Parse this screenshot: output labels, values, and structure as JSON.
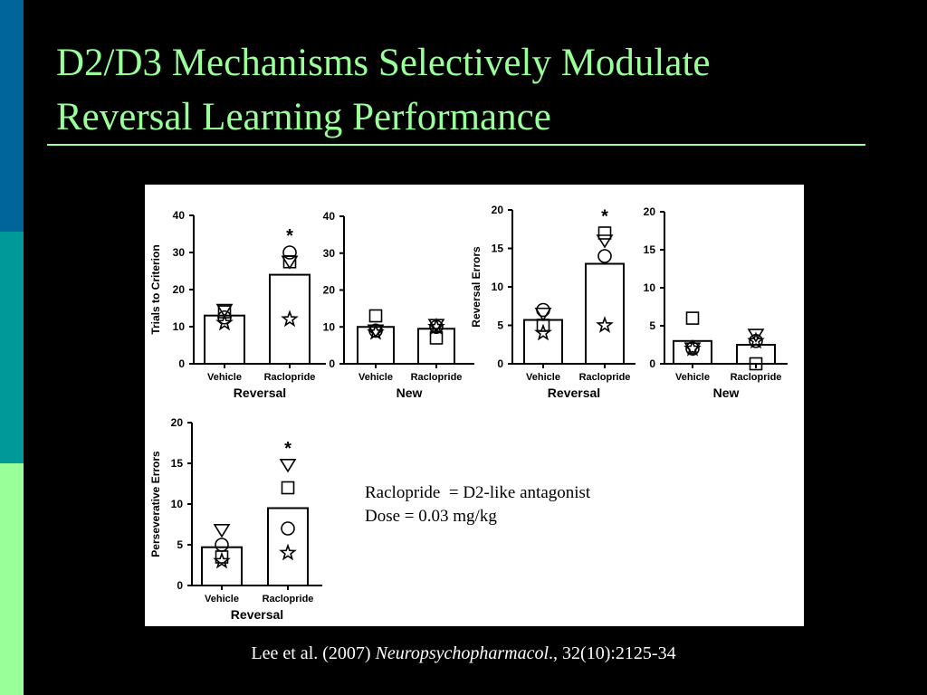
{
  "slide": {
    "title_lines": [
      "D2/D3 Mechanisms Selectively Modulate",
      "Reversal Learning Performance"
    ],
    "sidebar_colors": [
      "#006699",
      "#009999",
      "#99ff99"
    ],
    "title_color": "#99ff99",
    "annotation_lines": [
      "Raclopride  = D2-like antagonist",
      "Dose = 0.03 mg/kg"
    ],
    "citation": {
      "prefix": "Lee et al. (2007) ",
      "journal": "Neuropsychopharmacol",
      "suffix": "., 32(10):2125-34"
    }
  },
  "chart_data": [
    {
      "type": "bar",
      "ylabel": "Trials to Criterion",
      "xlabel": "Reversal",
      "ylim": [
        0,
        40
      ],
      "yticks": [
        0,
        10,
        20,
        30,
        40
      ],
      "categories": [
        "Vehicle",
        "Raclopride"
      ],
      "values": [
        13,
        24
      ],
      "significance": [
        null,
        "*"
      ],
      "points": [
        [
          {
            "shape": "triangle",
            "y": 14.5
          },
          {
            "shape": "square",
            "y": 14
          },
          {
            "shape": "circle",
            "y": 12.5
          },
          {
            "shape": "star",
            "y": 11
          }
        ],
        [
          {
            "shape": "circle",
            "y": 30
          },
          {
            "shape": "square",
            "y": 27.5
          },
          {
            "shape": "triangle",
            "y": 27.5
          },
          {
            "shape": "star",
            "y": 12
          }
        ]
      ]
    },
    {
      "type": "bar",
      "ylabel": "",
      "xlabel": "New",
      "ylim": [
        0,
        40
      ],
      "yticks": [
        0,
        10,
        20,
        30,
        40
      ],
      "categories": [
        "Vehicle",
        "Raclopride"
      ],
      "values": [
        10,
        9.5
      ],
      "significance": [
        null,
        null
      ],
      "points": [
        [
          {
            "shape": "square",
            "y": 13
          },
          {
            "shape": "circle",
            "y": 9
          },
          {
            "shape": "triangle",
            "y": 9
          },
          {
            "shape": "star",
            "y": 8.5
          }
        ],
        [
          {
            "shape": "triangle",
            "y": 10.5
          },
          {
            "shape": "circle",
            "y": 10
          },
          {
            "shape": "star",
            "y": 10
          },
          {
            "shape": "square",
            "y": 7
          }
        ]
      ]
    },
    {
      "type": "bar",
      "ylabel": "Reversal Errors",
      "xlabel": "Reversal",
      "ylim": [
        0,
        20
      ],
      "yticks": [
        0,
        5,
        10,
        15,
        20
      ],
      "categories": [
        "Vehicle",
        "Raclopride"
      ],
      "values": [
        5.7,
        13
      ],
      "significance": [
        null,
        "*"
      ],
      "points": [
        [
          {
            "shape": "circle",
            "y": 7
          },
          {
            "shape": "triangle",
            "y": 6.5
          },
          {
            "shape": "square",
            "y": 5
          },
          {
            "shape": "star",
            "y": 4
          }
        ],
        [
          {
            "shape": "square",
            "y": 17
          },
          {
            "shape": "triangle",
            "y": 16
          },
          {
            "shape": "circle",
            "y": 14
          },
          {
            "shape": "star",
            "y": 5
          }
        ]
      ]
    },
    {
      "type": "bar",
      "ylabel": "",
      "xlabel": "New",
      "ylim": [
        0,
        20
      ],
      "yticks": [
        0,
        5,
        10,
        15,
        20
      ],
      "categories": [
        "Vehicle",
        "Raclopride"
      ],
      "values": [
        3,
        2.5
      ],
      "significance": [
        null,
        null
      ],
      "points": [
        [
          {
            "shape": "square",
            "y": 6
          },
          {
            "shape": "circle",
            "y": 2
          },
          {
            "shape": "triangle",
            "y": 2
          },
          {
            "shape": "star",
            "y": 2
          }
        ],
        [
          {
            "shape": "triangle",
            "y": 3.8
          },
          {
            "shape": "circle",
            "y": 3
          },
          {
            "shape": "star",
            "y": 3
          },
          {
            "shape": "square",
            "y": 0
          }
        ]
      ]
    },
    {
      "type": "bar",
      "ylabel": "Perseverative Errors",
      "xlabel": "Reversal",
      "ylim": [
        0,
        20
      ],
      "yticks": [
        0,
        5,
        10,
        15,
        20
      ],
      "categories": [
        "Vehicle",
        "Raclopride"
      ],
      "values": [
        4.7,
        9.5
      ],
      "significance": [
        null,
        "*"
      ],
      "points": [
        [
          {
            "shape": "triangle",
            "y": 6.8
          },
          {
            "shape": "circle",
            "y": 5
          },
          {
            "shape": "square",
            "y": 3.5
          },
          {
            "shape": "star",
            "y": 3
          }
        ],
        [
          {
            "shape": "triangle",
            "y": 14.8
          },
          {
            "shape": "square",
            "y": 12
          },
          {
            "shape": "circle",
            "y": 7
          },
          {
            "shape": "star",
            "y": 4
          }
        ]
      ]
    }
  ]
}
